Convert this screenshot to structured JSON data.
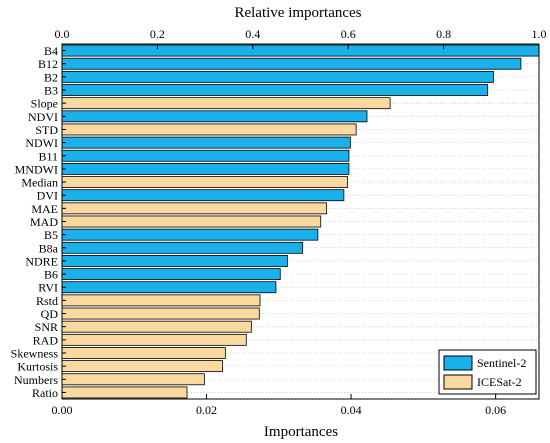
{
  "chart_data": {
    "type": "bar",
    "orientation": "horizontal",
    "title": "",
    "xlabel_top": "Relative importances",
    "xlabel_bottom": "Importances",
    "xlim_top": [
      0,
      1.0
    ],
    "xticks_top": [
      "0.0",
      "0.2",
      "0.4",
      "0.6",
      "0.8",
      "1.0"
    ],
    "xlim_bottom": [
      0,
      0.066
    ],
    "xticks_bottom": [
      "0.00",
      "0.02",
      "0.04",
      "0.06"
    ],
    "xtick_values_bottom": [
      0,
      0.02,
      0.04,
      0.06
    ],
    "grid": "horizontal dotted",
    "legend_position": "bottom-right",
    "series": [
      {
        "name": "Sentinel-2",
        "color": "#1ab0ea"
      },
      {
        "name": "ICESat-2",
        "color": "#fad9a0"
      }
    ],
    "categories": [
      "B4",
      "B12",
      "B2",
      "B3",
      "Slope",
      "NDVI",
      "STD",
      "NDWI",
      "B11",
      "MNDWI",
      "Median",
      "DVI",
      "MAE",
      "MAD",
      "B5",
      "B8a",
      "NDRE",
      "B6",
      "RVI",
      "Rstd",
      "QD",
      "SNR",
      "RAD",
      "Skewness",
      "Kurtosis",
      "Numbers",
      "Ratio"
    ],
    "values": [
      0.066,
      0.0635,
      0.0597,
      0.0589,
      0.0454,
      0.0422,
      0.0407,
      0.0399,
      0.0397,
      0.0397,
      0.0395,
      0.039,
      0.0366,
      0.0358,
      0.0354,
      0.0333,
      0.0312,
      0.0302,
      0.0296,
      0.0274,
      0.0273,
      0.0262,
      0.0255,
      0.0226,
      0.0222,
      0.0197,
      0.0173
    ],
    "groups": [
      "Sentinel-2",
      "Sentinel-2",
      "Sentinel-2",
      "Sentinel-2",
      "ICESat-2",
      "Sentinel-2",
      "ICESat-2",
      "Sentinel-2",
      "Sentinel-2",
      "Sentinel-2",
      "ICESat-2",
      "Sentinel-2",
      "ICESat-2",
      "ICESat-2",
      "Sentinel-2",
      "Sentinel-2",
      "Sentinel-2",
      "Sentinel-2",
      "Sentinel-2",
      "ICESat-2",
      "ICESat-2",
      "ICESat-2",
      "ICESat-2",
      "ICESat-2",
      "ICESat-2",
      "ICESat-2",
      "ICESat-2"
    ]
  }
}
